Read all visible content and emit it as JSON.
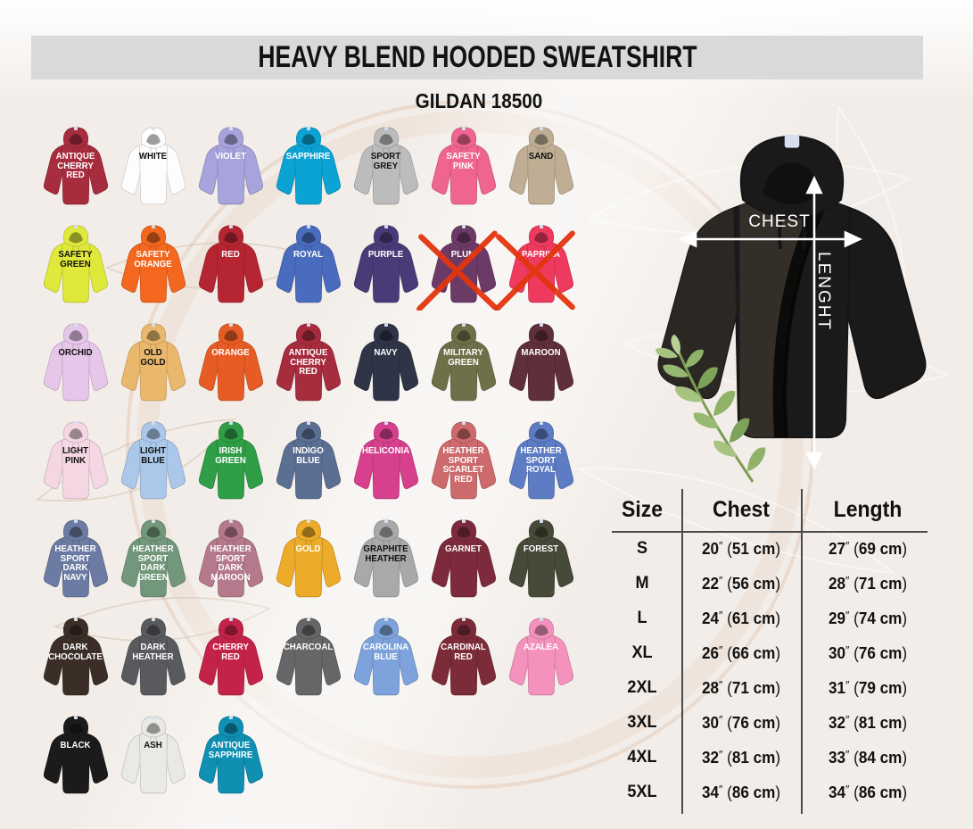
{
  "header": {
    "title": "HEAVY BLEND HOODED SWEATSHIRT",
    "subtitle": "GILDAN 18500"
  },
  "diagram": {
    "chest_label": "CHEST",
    "length_label": "LENGHT",
    "hoodie_color": "#1a1a1a",
    "arrow_color": "#ffffff"
  },
  "cross_out_color": "#e3350f",
  "colors": [
    {
      "name": "ANTIQUE CHERRY RED",
      "hex": "#a72c3e",
      "text": "#ffffff",
      "crossed": false
    },
    {
      "name": "WHITE",
      "hex": "#fdfdfd",
      "text": "#111111",
      "crossed": false
    },
    {
      "name": "VIOLET",
      "hex": "#a7a3dc",
      "text": "#ffffff",
      "crossed": false
    },
    {
      "name": "SAPPHIRE",
      "hex": "#0ba3d4",
      "text": "#ffffff",
      "crossed": false
    },
    {
      "name": "SPORT GREY",
      "hex": "#bcbcbc",
      "text": "#111111",
      "crossed": false
    },
    {
      "name": "SAFETY PINK",
      "hex": "#f06590",
      "text": "#ffffff",
      "crossed": false
    },
    {
      "name": "SAND",
      "hex": "#bfae93",
      "text": "#111111",
      "crossed": false
    },
    {
      "name": "SAFETY GREEN",
      "hex": "#dfe93b",
      "text": "#111111",
      "crossed": false
    },
    {
      "name": "SAFETY ORANGE",
      "hex": "#f3671f",
      "text": "#ffffff",
      "crossed": false
    },
    {
      "name": "RED",
      "hex": "#b52532",
      "text": "#ffffff",
      "crossed": false
    },
    {
      "name": "ROYAL",
      "hex": "#4a6cbe",
      "text": "#ffffff",
      "crossed": false
    },
    {
      "name": "PURPLE",
      "hex": "#4b3a78",
      "text": "#ffffff",
      "crossed": false
    },
    {
      "name": "PLUM",
      "hex": "#6c3a67",
      "text": "#ffffff",
      "crossed": true
    },
    {
      "name": "PAPRIKA",
      "hex": "#ef3a5f",
      "text": "#ffffff",
      "crossed": true
    },
    {
      "name": "ORCHID",
      "hex": "#e6c6e9",
      "text": "#111111",
      "crossed": false
    },
    {
      "name": "OLD GOLD",
      "hex": "#eab86c",
      "text": "#111111",
      "crossed": false
    },
    {
      "name": "ORANGE",
      "hex": "#e75c24",
      "text": "#ffffff",
      "crossed": false
    },
    {
      "name": "ANTIQUE CHERRY RED",
      "hex": "#a72c3e",
      "text": "#ffffff",
      "crossed": false
    },
    {
      "name": "NAVY",
      "hex": "#2f3447",
      "text": "#ffffff",
      "crossed": false
    },
    {
      "name": "MILITARY GREEN",
      "hex": "#6f7049",
      "text": "#ffffff",
      "crossed": false
    },
    {
      "name": "MAROON",
      "hex": "#5f2f3c",
      "text": "#ffffff",
      "crossed": false
    },
    {
      "name": "LIGHT PINK",
      "hex": "#f5d7e4",
      "text": "#111111",
      "crossed": false
    },
    {
      "name": "LIGHT BLUE",
      "hex": "#abc8ea",
      "text": "#111111",
      "crossed": false
    },
    {
      "name": "IRISH GREEN",
      "hex": "#2f9e47",
      "text": "#ffffff",
      "crossed": false
    },
    {
      "name": "INDIGO BLUE",
      "hex": "#5a6f92",
      "text": "#ffffff",
      "crossed": false
    },
    {
      "name": "HELICONIA",
      "hex": "#d6408d",
      "text": "#ffffff",
      "crossed": false
    },
    {
      "name": "HEATHER SPORT SCARLET RED",
      "hex": "#cd6a6d",
      "text": "#ffffff",
      "crossed": false
    },
    {
      "name": "HEATHER SPORT ROYAL",
      "hex": "#5d7cc4",
      "text": "#ffffff",
      "crossed": false
    },
    {
      "name": "HEATHER SPORT DARK NAVY",
      "hex": "#6c7ba3",
      "text": "#ffffff",
      "crossed": false
    },
    {
      "name": "HEATHER SPORT DARK GREEN",
      "hex": "#72977b",
      "text": "#ffffff",
      "crossed": false
    },
    {
      "name": "HEATHER SPORT DARK MAROON",
      "hex": "#b5798c",
      "text": "#ffffff",
      "crossed": false
    },
    {
      "name": "GOLD",
      "hex": "#ecab29",
      "text": "#ffffff",
      "crossed": false
    },
    {
      "name": "GRAPHITE HEATHER",
      "hex": "#a9a9ab",
      "text": "#111111",
      "crossed": false
    },
    {
      "name": "GARNET",
      "hex": "#7d2b3c",
      "text": "#ffffff",
      "crossed": false
    },
    {
      "name": "FOREST",
      "hex": "#474a38",
      "text": "#ffffff",
      "crossed": false
    },
    {
      "name": "DARK CHOCOLATE",
      "hex": "#3a2e27",
      "text": "#ffffff",
      "crossed": false
    },
    {
      "name": "DARK HEATHER",
      "hex": "#595a5e",
      "text": "#ffffff",
      "crossed": false
    },
    {
      "name": "CHERRY RED",
      "hex": "#c42348",
      "text": "#ffffff",
      "crossed": false
    },
    {
      "name": "CHARCOAL",
      "hex": "#666668",
      "text": "#ffffff",
      "crossed": false
    },
    {
      "name": "CAROLINA BLUE",
      "hex": "#7ea3dc",
      "text": "#ffffff",
      "crossed": false
    },
    {
      "name": "CARDINAL RED",
      "hex": "#7c2b38",
      "text": "#ffffff",
      "crossed": false
    },
    {
      "name": "AZALEA",
      "hex": "#f492bd",
      "text": "#ffffff",
      "crossed": false
    },
    {
      "name": "BLACK",
      "hex": "#1b1b1b",
      "text": "#ffffff",
      "crossed": false
    },
    {
      "name": "ASH",
      "hex": "#e9e9e6",
      "text": "#111111",
      "crossed": false
    },
    {
      "name": "ANTIQUE SAPPHIRE",
      "hex": "#0f8fb2",
      "text": "#ffffff",
      "crossed": false
    }
  ],
  "size_table": {
    "columns": [
      "Size",
      "Chest",
      "Length"
    ],
    "rows": [
      {
        "size": "S",
        "chest": {
          "in": "20",
          "cm": "51 cm"
        },
        "length": {
          "in": "27",
          "cm": "69 cm"
        }
      },
      {
        "size": "M",
        "chest": {
          "in": "22",
          "cm": "56 cm"
        },
        "length": {
          "in": "28",
          "cm": "71 cm"
        }
      },
      {
        "size": "L",
        "chest": {
          "in": "24",
          "cm": "61 cm"
        },
        "length": {
          "in": "29",
          "cm": "74 cm"
        }
      },
      {
        "size": "XL",
        "chest": {
          "in": "26",
          "cm": "66 cm"
        },
        "length": {
          "in": "30",
          "cm": "76 cm"
        }
      },
      {
        "size": "2XL",
        "chest": {
          "in": "28",
          "cm": "71 cm"
        },
        "length": {
          "in": "31",
          "cm": "79 cm"
        }
      },
      {
        "size": "3XL",
        "chest": {
          "in": "30",
          "cm": "76 cm"
        },
        "length": {
          "in": "32",
          "cm": "81 cm"
        }
      },
      {
        "size": "4XL",
        "chest": {
          "in": "32",
          "cm": "81 cm"
        },
        "length": {
          "in": "33",
          "cm": "84 cm"
        }
      },
      {
        "size": "5XL",
        "chest": {
          "in": "34",
          "cm": "86 cm"
        },
        "length": {
          "in": "34",
          "cm": "86 cm"
        }
      }
    ]
  }
}
